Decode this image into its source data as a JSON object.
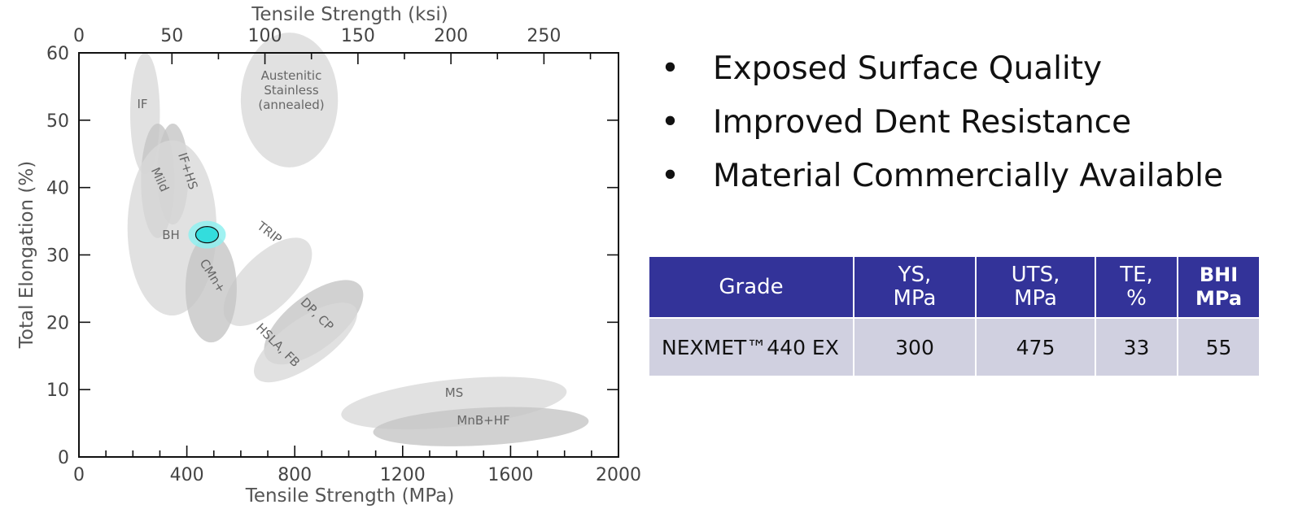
{
  "chart_data": {
    "type": "scatter",
    "xlabel": "Tensile Strength (MPa)",
    "x2label": "Tensile Strength (ksi)",
    "ylabel": "Total Elongation (%)",
    "xlim": [
      0,
      2000
    ],
    "x2lim": [
      0,
      290.08
    ],
    "ylim": [
      0,
      60
    ],
    "x_ticks": [
      0,
      400,
      800,
      1200,
      1600,
      2000
    ],
    "x2_ticks": [
      0,
      50,
      100,
      150,
      200,
      250
    ],
    "y_ticks": [
      0,
      10,
      20,
      30,
      40,
      50,
      60
    ],
    "regions": [
      {
        "label": "IF",
        "cx": 245,
        "cy": 51,
        "rx_data": 55,
        "ry_data": 9,
        "angle": 0,
        "shade": "light"
      },
      {
        "label": "Austenitic Stainless (annealed)",
        "cx": 780,
        "cy": 53,
        "rx_data": 180,
        "ry_data": 10,
        "angle": 0,
        "shade": "light"
      },
      {
        "label": "IF+HS",
        "cx": 348,
        "cy": 42,
        "rx_data": 58,
        "ry_data": 7.5,
        "angle": 0,
        "shade": "medium"
      },
      {
        "label": "Mild",
        "cx": 292,
        "cy": 41,
        "rx_data": 62,
        "ry_data": 8.5,
        "angle": 0,
        "shade": "medium"
      },
      {
        "label": "BH",
        "cx": 345,
        "cy": 34,
        "rx_data": 165,
        "ry_data": 13,
        "angle": 0,
        "shade": "light"
      },
      {
        "label": "TRIP",
        "cx": 700,
        "cy": 26,
        "rx_data": 380,
        "ry_data": 4,
        "angle": -45,
        "shade": "light"
      },
      {
        "label": "CMn+",
        "cx": 490,
        "cy": 25,
        "rx_data": 95,
        "ry_data": 8,
        "angle": 0,
        "shade": "medium"
      },
      {
        "label": "DP, CP",
        "cx": 870,
        "cy": 20,
        "rx_data": 400,
        "ry_data": 4,
        "angle": -38,
        "shade": "medium"
      },
      {
        "label": "HSLA, FB",
        "cx": 840,
        "cy": 17,
        "rx_data": 410,
        "ry_data": 3.5,
        "angle": -35,
        "shade": "light"
      },
      {
        "label": "MS",
        "cx": 1390,
        "cy": 8,
        "rx_data": 420,
        "ry_data": 3.5,
        "angle": -6,
        "shade": "light"
      },
      {
        "label": "MnB+HF",
        "cx": 1490,
        "cy": 4.5,
        "rx_data": 400,
        "ry_data": 2.8,
        "angle": -3,
        "shade": "medium"
      }
    ],
    "highlight": {
      "x": 475,
      "y": 33,
      "color": "#33dddd"
    }
  },
  "bullets": [
    "Exposed Surface Quality",
    "Improved Dent Resistance",
    "Material Commercially Available"
  ],
  "table": {
    "headers": [
      {
        "line1": "Grade",
        "line2": ""
      },
      {
        "line1": "YS,",
        "line2": "MPa"
      },
      {
        "line1": "UTS,",
        "line2": "MPa"
      },
      {
        "line1": "TE,",
        "line2": "%"
      },
      {
        "line1": "BHI",
        "line2": "MPa"
      }
    ],
    "rows": [
      [
        "NEXMET™440 EX",
        "300",
        "475",
        "33",
        "55"
      ]
    ]
  },
  "colors": {
    "header_bg": "#333399",
    "row_bg": "#d0d0e0",
    "region_light": "#d9d9d9",
    "region_medium": "#c4c4c4",
    "highlight": "#33dddd"
  }
}
